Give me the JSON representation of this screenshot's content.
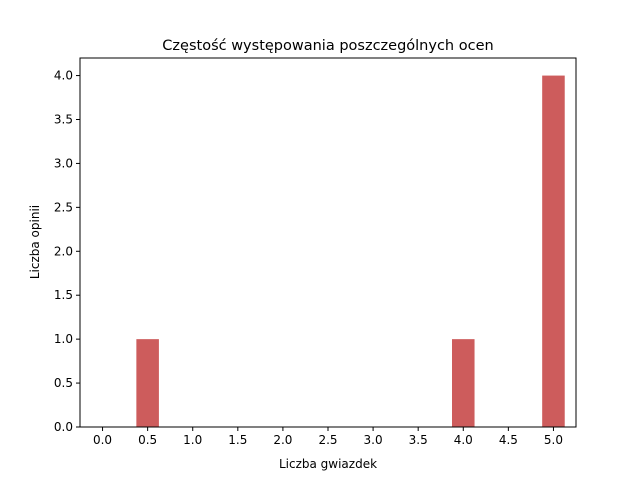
{
  "chart_data": {
    "type": "bar",
    "title": "Częstość występowania poszczególnych ocen",
    "xlabel": "Liczba gwiazdek",
    "ylabel": "Liczba opinii",
    "x": [
      0.5,
      4.0,
      5.0
    ],
    "values": [
      1,
      1,
      4
    ],
    "bar_width": 0.25,
    "xlim": [
      -0.25,
      5.25
    ],
    "ylim": [
      0,
      4.2
    ],
    "xticks": [
      0.0,
      0.5,
      1.0,
      1.5,
      2.0,
      2.5,
      3.0,
      3.5,
      4.0,
      4.5,
      5.0
    ],
    "xtick_labels": [
      "0.0",
      "0.5",
      "1.0",
      "1.5",
      "2.0",
      "2.5",
      "3.0",
      "3.5",
      "4.0",
      "4.5",
      "5.0"
    ],
    "yticks": [
      0.0,
      0.5,
      1.0,
      1.5,
      2.0,
      2.5,
      3.0,
      3.5,
      4.0
    ],
    "ytick_labels": [
      "0.0",
      "0.5",
      "1.0",
      "1.5",
      "2.0",
      "2.5",
      "3.0",
      "3.5",
      "4.0"
    ],
    "grid": false,
    "bar_color": "#cd5c5c",
    "axis_color": "#000000"
  }
}
